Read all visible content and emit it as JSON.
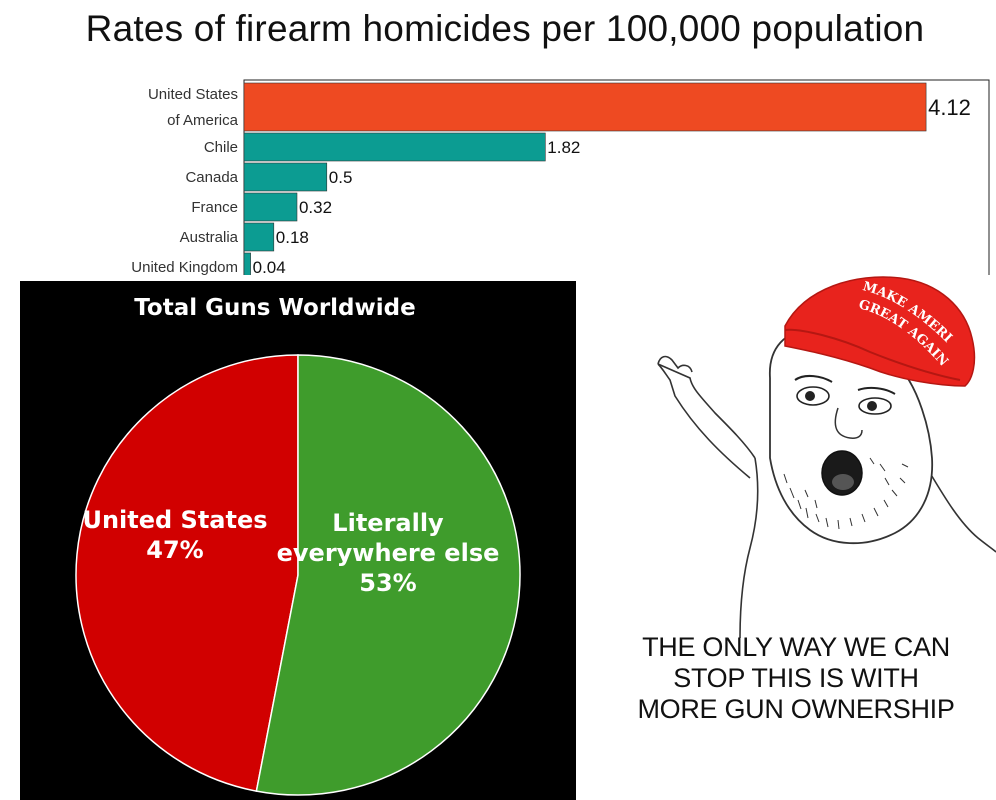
{
  "chart_data": [
    {
      "type": "bar",
      "orientation": "horizontal",
      "title": "Rates of firearm homicides per 100,000 population",
      "categories": [
        "United States of America",
        "Chile",
        "Canada",
        "France",
        "Australia",
        "United Kingdom"
      ],
      "category_lines": [
        [
          "United States",
          "of America"
        ],
        [
          "Chile"
        ],
        [
          "Canada"
        ],
        [
          "France"
        ],
        [
          "Australia"
        ],
        [
          "United Kingdom"
        ]
      ],
      "values": [
        4.12,
        1.82,
        0.5,
        0.32,
        0.18,
        0.04
      ],
      "value_labels": [
        "4.12",
        "1.82",
        "0.5",
        "0.32",
        "0.18",
        "0.04"
      ],
      "colors": [
        "#ee4a22",
        "#0c9c92",
        "#0c9c92",
        "#0c9c92",
        "#0c9c92",
        "#0c9c92"
      ],
      "xlim": [
        0,
        4.5
      ],
      "grid": false
    },
    {
      "type": "pie",
      "title": "Total Guns Worldwide",
      "slices": [
        {
          "label_lines": [
            "United States"
          ],
          "pct_label": "47%",
          "value": 47,
          "color": "#d10000"
        },
        {
          "label_lines": [
            "Literally",
            "everywhere else"
          ],
          "pct_label": "53%",
          "value": 53,
          "color": "#3f9c2c"
        }
      ],
      "background": "#000000"
    }
  ],
  "meme": {
    "hat_text_line1": "MAKE AMERICA",
    "hat_text_line2": "GREAT AGAIN",
    "hat_color": "#e8231d",
    "caption_lines": [
      "THE ONLY WAY WE CAN",
      "STOP THIS IS WITH",
      "MORE GUN OWNERSHIP"
    ]
  }
}
